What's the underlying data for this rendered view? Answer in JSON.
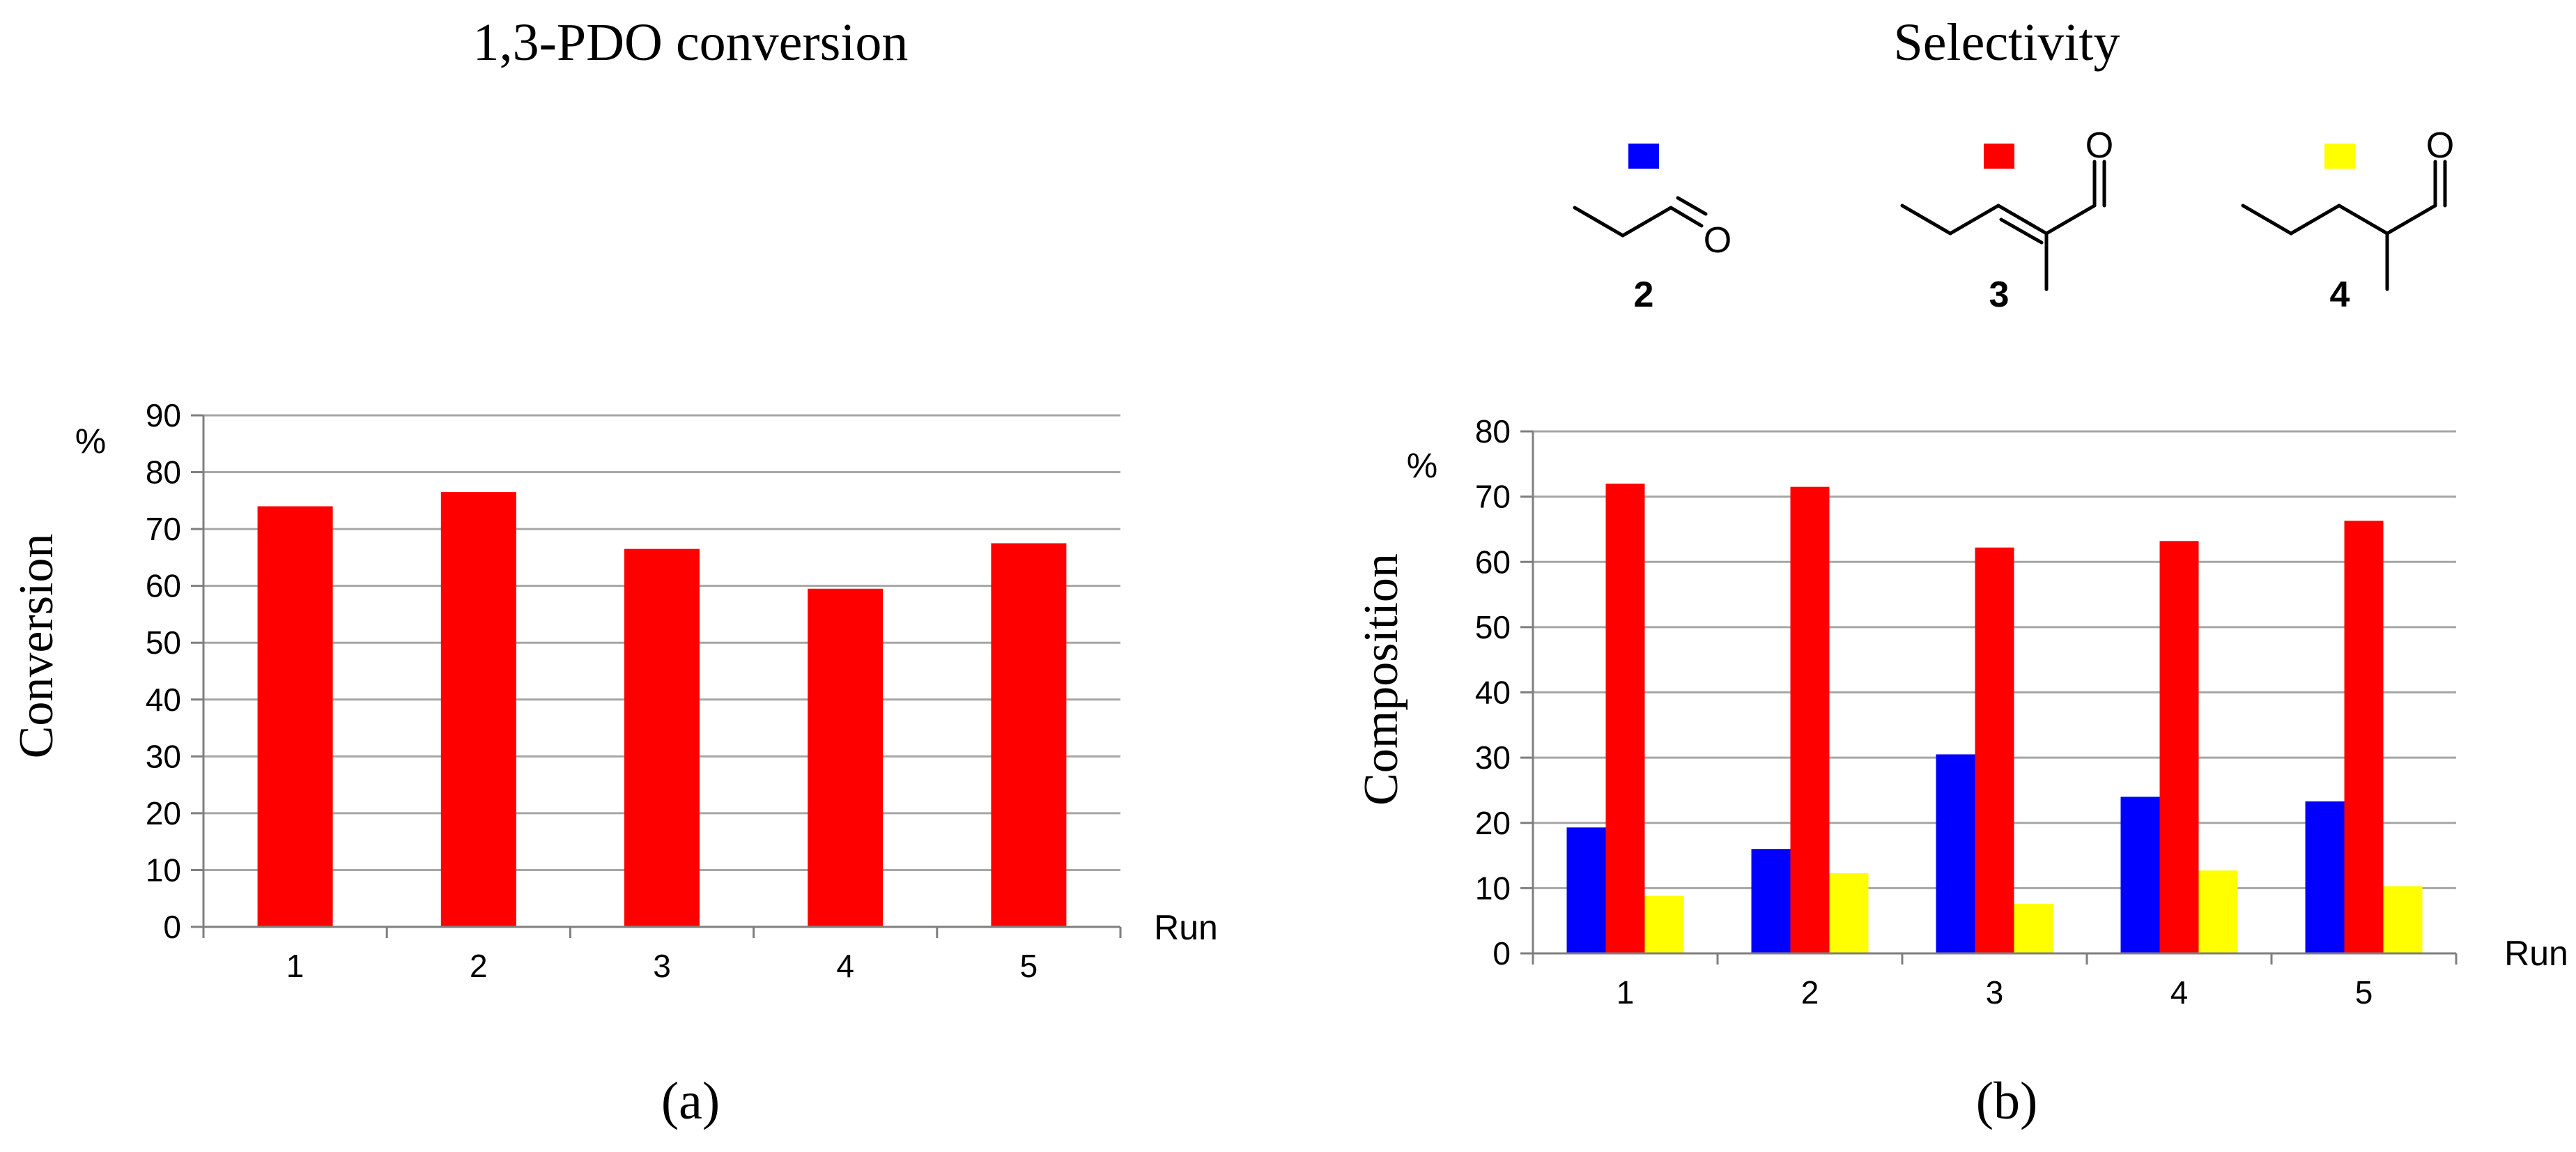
{
  "colors": {
    "series_2": "#0000ff",
    "series_3": "#ff0000",
    "series_4": "#ffff00",
    "grid": "#a6a6a6",
    "axis": "#7f7f7f",
    "text": "#000000"
  },
  "compounds": [
    {
      "label": "2",
      "color": "#0000ff",
      "structure": "propanal",
      "oxygen": "O"
    },
    {
      "label": "3",
      "color": "#ff0000",
      "structure": "2-methylpent-2-enal",
      "oxygen": "O"
    },
    {
      "label": "4",
      "color": "#ffff00",
      "structure": "2-methylpentanal",
      "oxygen": "O"
    }
  ],
  "chart_data": [
    {
      "id": "a",
      "type": "bar",
      "title": "1,3-PDO conversion",
      "caption": "(a)",
      "xlabel": "Run",
      "ylabel": "Conversion",
      "yunit": "%",
      "categories": [
        "1",
        "2",
        "3",
        "4",
        "5"
      ],
      "ylim": [
        0,
        90
      ],
      "yticks": [
        0,
        10,
        20,
        30,
        40,
        50,
        60,
        70,
        80,
        90
      ],
      "grid": true,
      "series": [
        {
          "name": "Conversion",
          "color": "#ff0000",
          "values": [
            74,
            76.5,
            66.5,
            59.5,
            67.5
          ]
        }
      ]
    },
    {
      "id": "b",
      "type": "bar",
      "title": "Selectivity",
      "caption": "(b)",
      "xlabel": "Run",
      "ylabel": "Composition",
      "yunit": "%",
      "categories": [
        "1",
        "2",
        "3",
        "4",
        "5"
      ],
      "ylim": [
        0,
        80
      ],
      "yticks": [
        0,
        10,
        20,
        30,
        40,
        50,
        60,
        70,
        80
      ],
      "grid": true,
      "series": [
        {
          "name": "2",
          "color": "#0000ff",
          "values": [
            19.3,
            16,
            30.5,
            24,
            23.3
          ]
        },
        {
          "name": "3",
          "color": "#ff0000",
          "values": [
            72,
            71.5,
            62.2,
            63.2,
            66.3
          ]
        },
        {
          "name": "4",
          "color": "#ffff00",
          "values": [
            8.8,
            12.3,
            7.6,
            12.7,
            10.3
          ]
        }
      ]
    }
  ]
}
